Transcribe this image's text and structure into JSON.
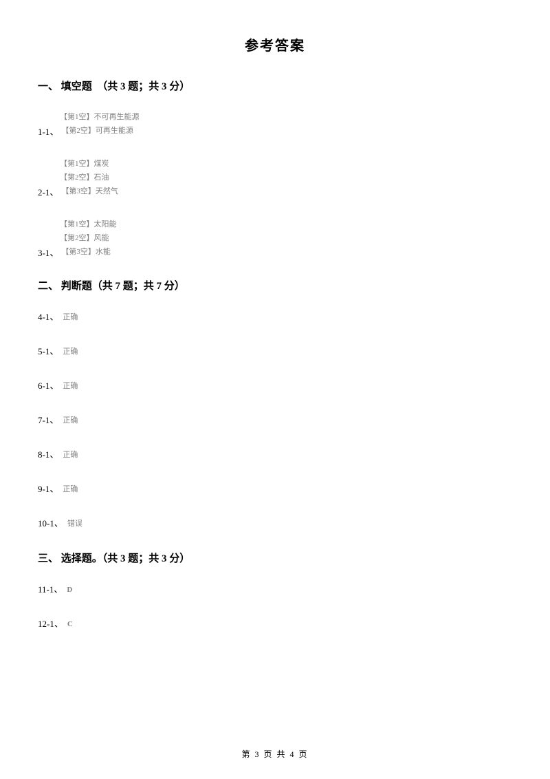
{
  "title": "参考答案",
  "sections": {
    "s1": {
      "heading": "一、 填空题　（共 3 题；共 3 分）",
      "questions": {
        "q1": {
          "number": "1-1、",
          "blanks": {
            "b1": "【第1空】不可再生能源",
            "b2": "【第2空】可再生能源"
          }
        },
        "q2": {
          "number": "2-1、",
          "blanks": {
            "b1": "【第1空】煤炭",
            "b2": "【第2空】石油",
            "b3": "【第3空】天然气"
          }
        },
        "q3": {
          "number": "3-1、",
          "blanks": {
            "b1": "【第1空】太阳能",
            "b2": "【第2空】风能",
            "b3": "【第3空】水能"
          }
        }
      }
    },
    "s2": {
      "heading": "二、 判断题（共 7 题；共 7 分）",
      "answers": {
        "a4": {
          "num": "4-1、",
          "val": "正确"
        },
        "a5": {
          "num": "5-1、",
          "val": "正确"
        },
        "a6": {
          "num": "6-1、",
          "val": "正确"
        },
        "a7": {
          "num": "7-1、",
          "val": "正确"
        },
        "a8": {
          "num": "8-1、",
          "val": "正确"
        },
        "a9": {
          "num": "9-1、",
          "val": "正确"
        },
        "a10": {
          "num": "10-1、",
          "val": "错误"
        }
      }
    },
    "s3": {
      "heading": "三、 选择题。（共 3 题；共 3 分）",
      "answers": {
        "a11": {
          "num": "11-1、",
          "val": "D"
        },
        "a12": {
          "num": "12-1、",
          "val": "C"
        }
      }
    }
  },
  "footer": "第 3 页 共 4 页",
  "colors": {
    "text_primary": "#000000",
    "text_secondary": "#808080",
    "background": "#ffffff"
  },
  "typography": {
    "title_fontsize": 20,
    "heading_fontsize": 15,
    "number_fontsize": 13,
    "answer_fontsize": 11,
    "footer_fontsize": 12
  }
}
